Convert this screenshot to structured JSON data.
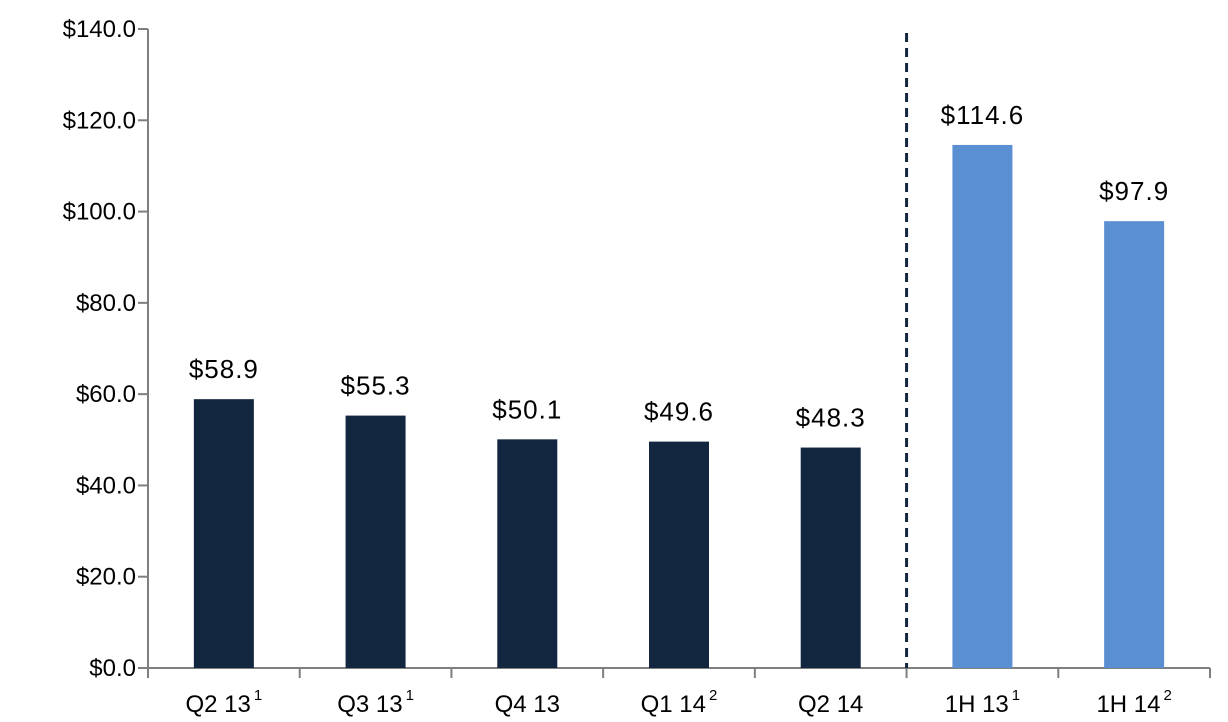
{
  "chart_data": {
    "type": "bar",
    "title": "",
    "xlabel": "",
    "ylabel": "",
    "ylim": [
      0,
      140
    ],
    "y_tick_step": 20,
    "y_tick_labels": [
      "$0.0",
      "$20.0",
      "$40.0",
      "$60.0",
      "$80.0",
      "$100.0",
      "$120.0",
      "$140.0"
    ],
    "grid": false,
    "legend": "none",
    "categories": [
      {
        "label": "Q2 13",
        "footnote": "1",
        "value": 58.9,
        "value_label": "$58.9",
        "group": "quarter"
      },
      {
        "label": "Q3 13",
        "footnote": "1",
        "value": 55.3,
        "value_label": "$55.3",
        "group": "quarter"
      },
      {
        "label": "Q4 13",
        "footnote": "",
        "value": 50.1,
        "value_label": "$50.1",
        "group": "quarter"
      },
      {
        "label": "Q1 14",
        "footnote": "2",
        "value": 49.6,
        "value_label": "$49.6",
        "group": "quarter"
      },
      {
        "label": "Q2 14",
        "footnote": "",
        "value": 48.3,
        "value_label": "$48.3",
        "group": "quarter"
      },
      {
        "label": "1H 13",
        "footnote": "1",
        "value": 114.6,
        "value_label": "$114.6",
        "group": "half-year"
      },
      {
        "label": "1H 14",
        "footnote": "2",
        "value": 97.9,
        "value_label": "$97.9",
        "group": "half-year"
      }
    ],
    "separator_after_index": 4,
    "colors": {
      "quarter": "#13263f",
      "half-year": "#5a8fd2",
      "axis": "#7f7f7f",
      "separator": "#13263f"
    }
  }
}
